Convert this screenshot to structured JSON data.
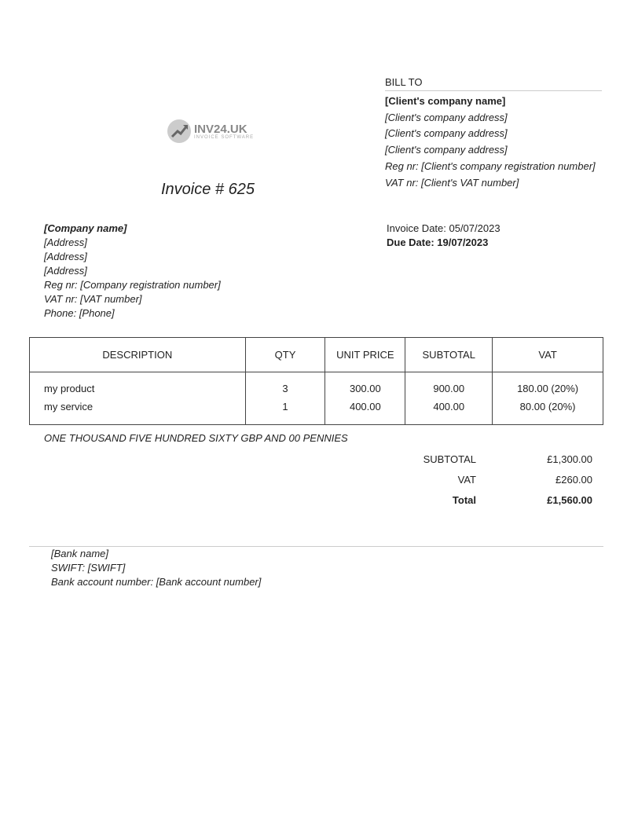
{
  "logo": {
    "text": "INV24.UK",
    "subtitle": "INVOICE SOFTWARE"
  },
  "invoice_title": "Invoice #  625",
  "bill_to": {
    "heading": "BILL TO",
    "company": "[Client's company name]",
    "address_lines": [
      "[Client's company address]",
      "[Client's company address]",
      "[Client's company address]"
    ],
    "reg": "Reg nr: [Client's company registration number]",
    "vat": "VAT nr: [Client's VAT number]"
  },
  "seller": {
    "company": "[Company name]",
    "address_lines": [
      "[Address]",
      "[Address]",
      "[Address]"
    ],
    "reg": "Reg nr: [Company registration number]",
    "vat": "VAT nr: [VAT number]",
    "phone": "Phone: [Phone]"
  },
  "dates": {
    "invoice_date": "Invoice Date: 05/07/2023",
    "due_date": "Due Date: 19/07/2023"
  },
  "table": {
    "headers": [
      "DESCRIPTION",
      "QTY",
      "UNIT PRICE",
      "SUBTOTAL",
      "VAT"
    ],
    "rows": [
      [
        "my product",
        "3",
        "300.00",
        "900.00",
        "180.00 (20%)"
      ],
      [
        "my service",
        "1",
        "400.00",
        "400.00",
        "80.00 (20%)"
      ]
    ]
  },
  "amount_in_words": "ONE THOUSAND  FIVE HUNDRED SIXTY GBP AND 00 PENNIES",
  "totals": {
    "subtotal_label": "SUBTOTAL",
    "subtotal": "£1,300.00",
    "vat_label": "VAT",
    "vat": "£260.00",
    "total_label": "Total",
    "total": "£1,560.00"
  },
  "bank": {
    "name": "[Bank name]",
    "swift": "SWIFT: [SWIFT]",
    "account": "Bank account number: [Bank account number]"
  }
}
